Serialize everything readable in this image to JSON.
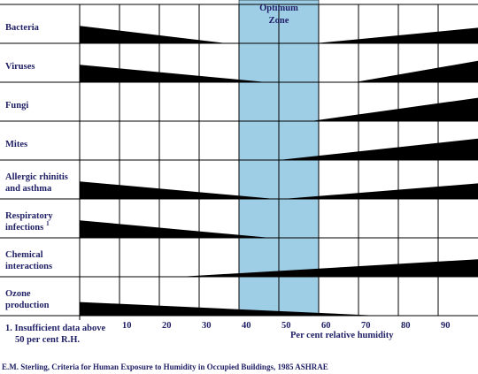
{
  "chart_data": {
    "type": "area",
    "title": "",
    "xlabel": "Per cent relative humidity",
    "ylabel": "",
    "xlim": [
      0,
      100
    ],
    "x_ticks": [
      "10",
      "20",
      "30",
      "40",
      "50",
      "60",
      "70",
      "80",
      "90"
    ],
    "optimum_zone": {
      "label_line1": "Optimum",
      "label_line2": "Zone",
      "start": 40,
      "end": 60,
      "color": "#9ecde6"
    },
    "rows": [
      {
        "label": [
          "Bacteria"
        ],
        "left": {
          "from": 0,
          "to": 37,
          "height": 0.45
        },
        "right": {
          "from": 59,
          "to": 100,
          "height": 0.4
        }
      },
      {
        "label": [
          "Viruses"
        ],
        "left": {
          "from": 0,
          "to": 47,
          "height": 0.45
        },
        "right": {
          "from": 69,
          "to": 100,
          "height": 0.55
        }
      },
      {
        "label": [
          "Fungi"
        ],
        "left": null,
        "right": {
          "from": 58,
          "to": 100,
          "height": 0.6
        }
      },
      {
        "label": [
          "Mites"
        ],
        "left": null,
        "right": {
          "from": 50,
          "to": 100,
          "height": 0.55
        }
      },
      {
        "label": [
          "Allergic rhinitis",
          "and asthma"
        ],
        "left": {
          "from": 0,
          "to": 49,
          "height": 0.45
        },
        "right": {
          "from": 51,
          "to": 100,
          "height": 0.4
        }
      },
      {
        "label": [
          "Respiratory",
          "infections"
        ],
        "label_sup": "1",
        "left": {
          "from": 0,
          "to": 48,
          "height": 0.45
        },
        "right": null
      },
      {
        "label": [
          "Chemical",
          "interactions"
        ],
        "left": null,
        "right": {
          "from": 25,
          "to": 100,
          "height": 0.45
        }
      },
      {
        "label": [
          "Ozone",
          "production"
        ],
        "left": {
          "from": 0,
          "to": 75,
          "height": 0.35
        },
        "right": null
      }
    ],
    "footnote_line1": "1.  Insufficient data above",
    "footnote_line2": "50 per cent R.H.",
    "source": "E.M. Sterling, Criteria for Human Exposure to Humidity in Occupied Buildings, 1985 ASHRAE"
  }
}
